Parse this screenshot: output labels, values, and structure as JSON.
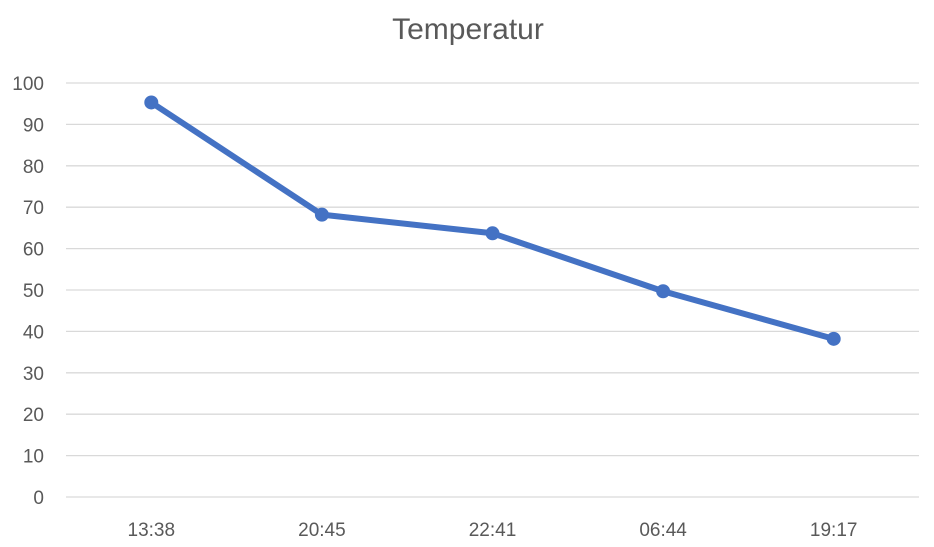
{
  "chart_data": {
    "type": "line",
    "title": "Temperatur",
    "xlabel": "",
    "ylabel": "",
    "categories": [
      "13:38",
      "20:45",
      "22:41",
      "06:44",
      "19:17"
    ],
    "series": [
      {
        "values": [
          95.3,
          68.2,
          63.7,
          49.7,
          38.2
        ],
        "color": "#4472c4"
      }
    ],
    "ylim": [
      0,
      100
    ],
    "yticks": [
      0,
      10,
      20,
      30,
      40,
      50,
      60,
      70,
      80,
      90,
      100
    ],
    "grid": true,
    "legend": "none"
  }
}
